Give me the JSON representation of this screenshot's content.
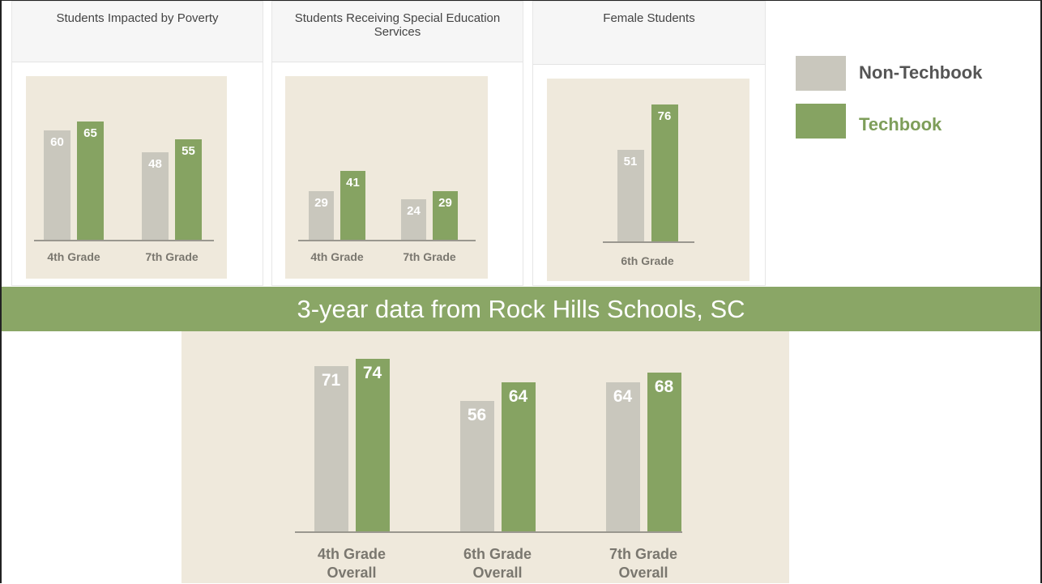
{
  "banner": "3-year data from Rock Hills Schools, SC",
  "chart_data": [
    {
      "type": "bar",
      "title": "Students Impacted by Poverty",
      "categories": [
        "4th Grade",
        "7th Grade"
      ],
      "series": [
        {
          "name": "Non-Techbook",
          "color": "#c9c7bd",
          "values": [
            60,
            48
          ]
        },
        {
          "name": "Techbook",
          "color": "#86a362",
          "values": [
            65,
            55
          ]
        }
      ]
    },
    {
      "type": "bar",
      "title": "Students Receiving Special Education Services",
      "categories": [
        "4th Grade",
        "7th Grade"
      ],
      "series": [
        {
          "name": "Non-Techbook",
          "color": "#c9c7bd",
          "values": [
            29,
            24
          ]
        },
        {
          "name": "Techbook",
          "color": "#86a362",
          "values": [
            41,
            29
          ]
        }
      ]
    },
    {
      "type": "bar",
      "title": "Female Students",
      "categories": [
        "6th Grade"
      ],
      "series": [
        {
          "name": "Non-Techbook",
          "color": "#c9c7bd",
          "values": [
            51
          ]
        },
        {
          "name": "Techbook",
          "color": "#86a362",
          "values": [
            76
          ]
        }
      ]
    },
    {
      "type": "bar",
      "categories": [
        "4th Grade Overall",
        "6th Grade Overall",
        "7th Grade Overall"
      ],
      "series": [
        {
          "name": "Non-Techbook",
          "color": "#c9c7bd",
          "values": [
            71,
            56,
            64
          ]
        },
        {
          "name": "Techbook",
          "color": "#86a362",
          "values": [
            74,
            64,
            68
          ]
        }
      ]
    }
  ]
}
